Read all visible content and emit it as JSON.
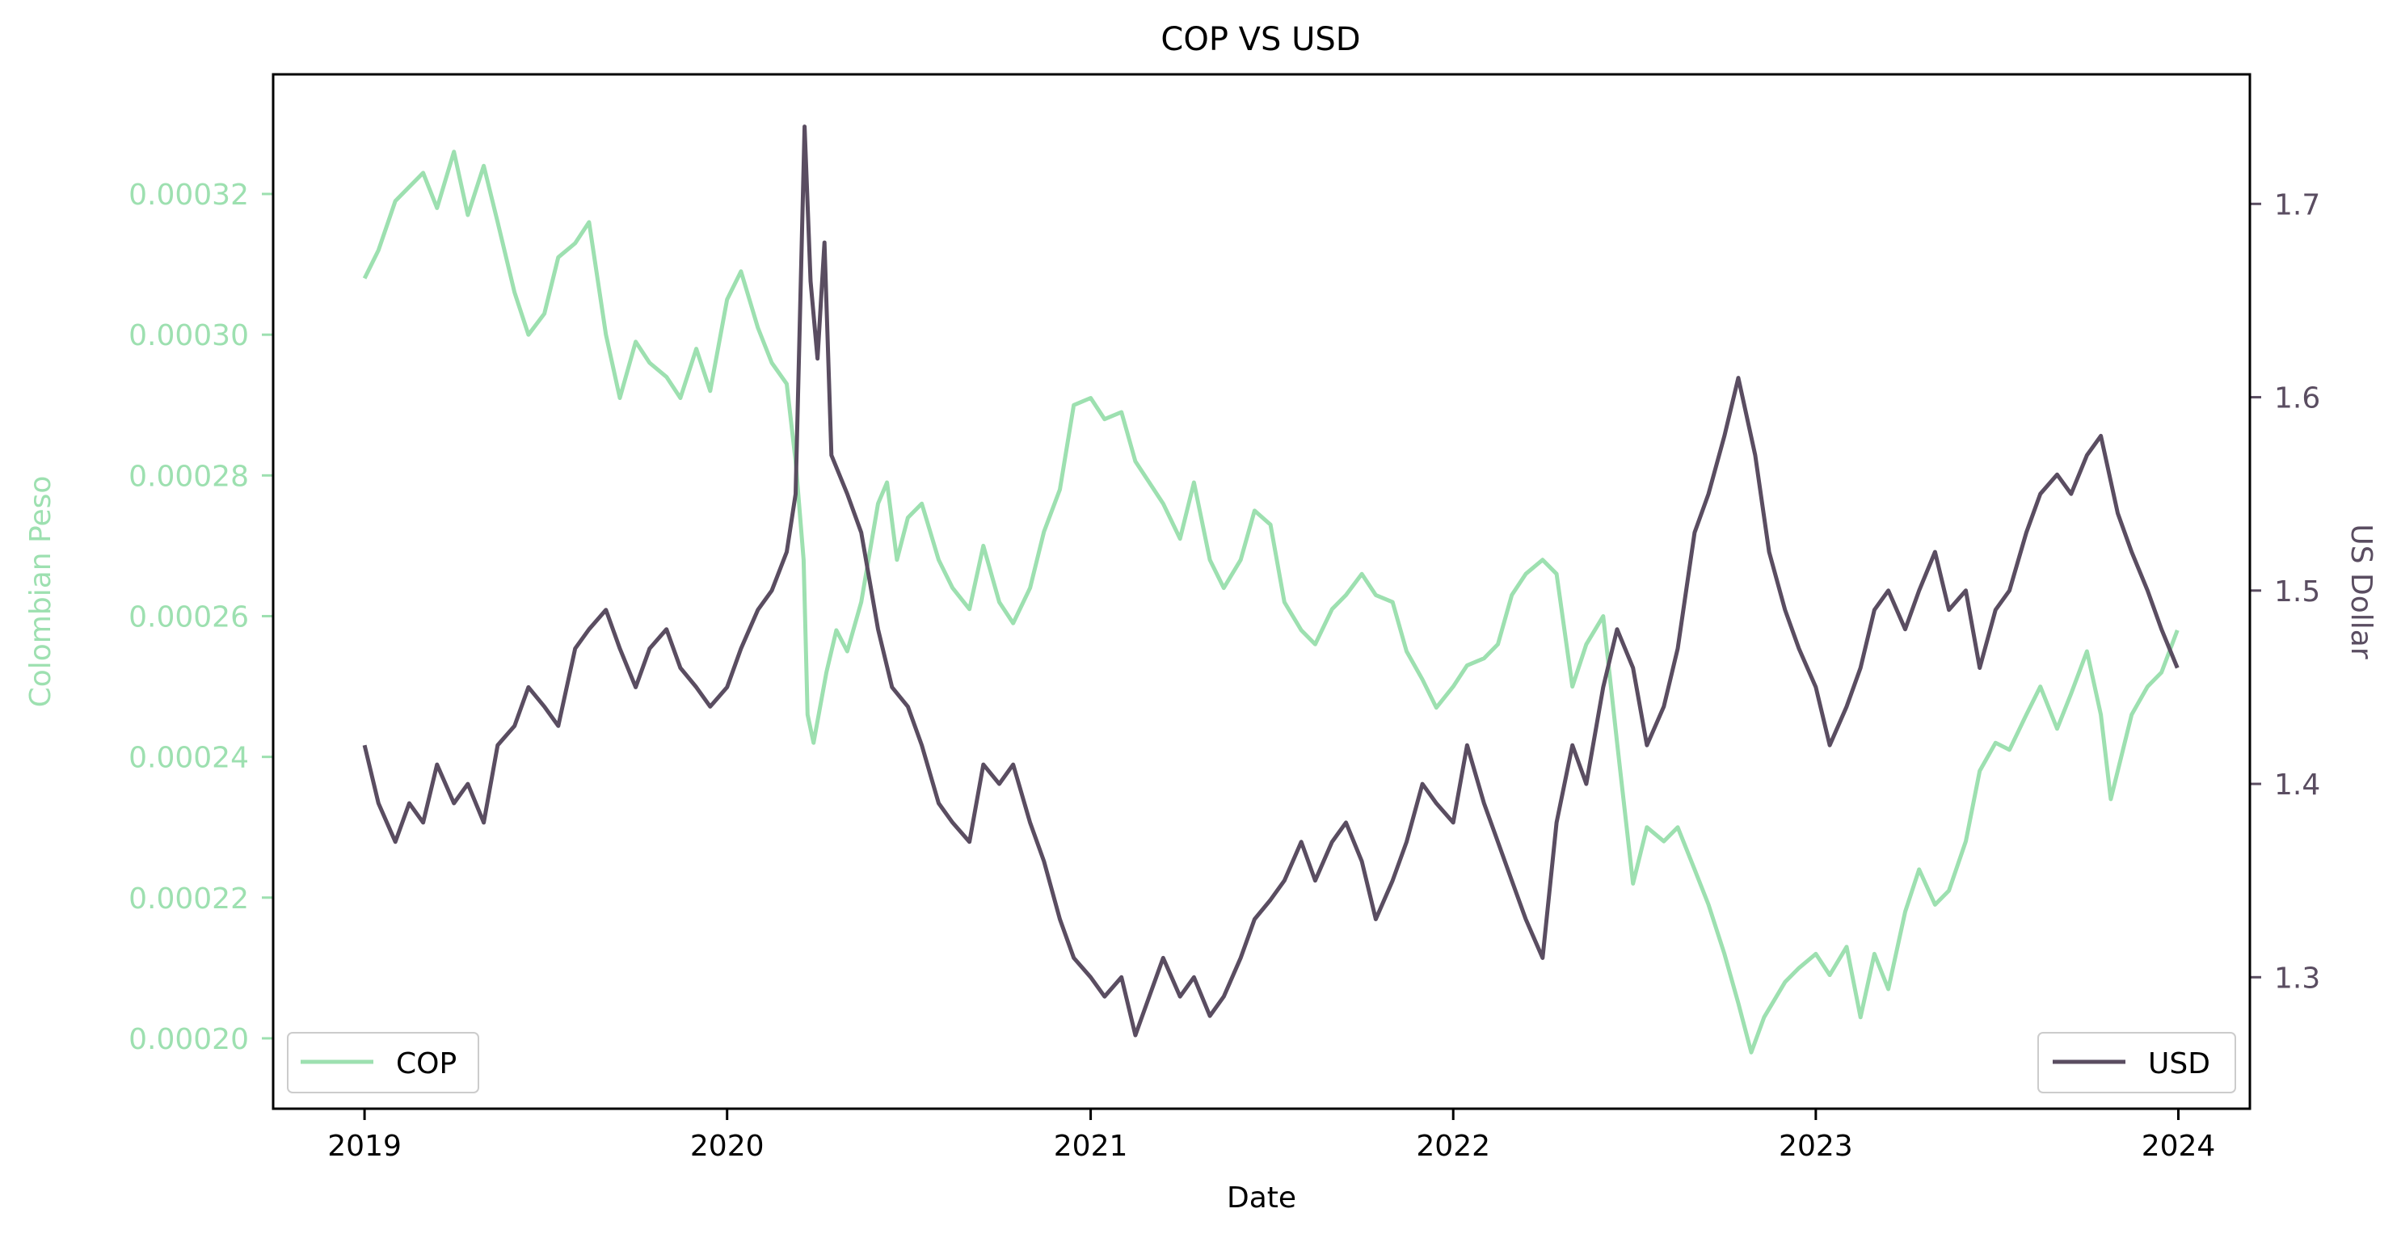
{
  "chart_data": {
    "type": "line",
    "title": "COP VS USD",
    "xlabel": "Date",
    "ylabel_left": "Colombian Peso",
    "ylabel_right": "US Dollar",
    "x_ticks": [
      "2019",
      "2020",
      "2021",
      "2022",
      "2023",
      "2024"
    ],
    "y_left_ticks": [
      "0.00020",
      "0.00022",
      "0.00024",
      "0.00026",
      "0.00028",
      "0.00030",
      "0.00032"
    ],
    "y_right_ticks": [
      "1.3",
      "1.4",
      "1.5",
      "1.6",
      "1.7"
    ],
    "xlim": [
      "2018-10-01",
      "2024-03-13"
    ],
    "ylim_left": [
      0.00019,
      0.000337
    ],
    "ylim_right": [
      1.232,
      1.767
    ],
    "grid": false,
    "legend_left": {
      "position": "lower-left",
      "label": "COP"
    },
    "legend_right": {
      "position": "lower-right",
      "label": "USD"
    },
    "colors": {
      "cop": "#9de0b0",
      "usd": "#5a4d61"
    },
    "series": [
      {
        "name": "COP",
        "axis": "left",
        "points": [
          [
            "2019-01-01",
            0.000308
          ],
          [
            "2019-01-15",
            0.000312
          ],
          [
            "2019-02-01",
            0.000319
          ],
          [
            "2019-02-15",
            0.000321
          ],
          [
            "2019-03-01",
            0.000323
          ],
          [
            "2019-03-15",
            0.000318
          ],
          [
            "2019-04-01",
            0.000326
          ],
          [
            "2019-04-15",
            0.000317
          ],
          [
            "2019-05-01",
            0.000324
          ],
          [
            "2019-05-15",
            0.000316
          ],
          [
            "2019-06-01",
            0.000306
          ],
          [
            "2019-06-15",
            0.0003
          ],
          [
            "2019-07-01",
            0.000303
          ],
          [
            "2019-07-15",
            0.000311
          ],
          [
            "2019-08-01",
            0.000313
          ],
          [
            "2019-08-15",
            0.000316
          ],
          [
            "2019-09-01",
            0.0003
          ],
          [
            "2019-09-15",
            0.000291
          ],
          [
            "2019-10-01",
            0.000299
          ],
          [
            "2019-10-15",
            0.000296
          ],
          [
            "2019-11-01",
            0.000294
          ],
          [
            "2019-11-15",
            0.000291
          ],
          [
            "2019-12-01",
            0.000298
          ],
          [
            "2019-12-15",
            0.000292
          ],
          [
            "2020-01-01",
            0.000305
          ],
          [
            "2020-01-15",
            0.000309
          ],
          [
            "2020-02-01",
            0.000301
          ],
          [
            "2020-02-15",
            0.000296
          ],
          [
            "2020-03-01",
            0.000293
          ],
          [
            "2020-03-10",
            0.000282
          ],
          [
            "2020-03-18",
            0.000268
          ],
          [
            "2020-03-22",
            0.000246
          ],
          [
            "2020-03-28",
            0.000242
          ],
          [
            "2020-04-10",
            0.000252
          ],
          [
            "2020-04-20",
            0.000258
          ],
          [
            "2020-05-01",
            0.000255
          ],
          [
            "2020-05-15",
            0.000262
          ],
          [
            "2020-06-01",
            0.000276
          ],
          [
            "2020-06-10",
            0.000279
          ],
          [
            "2020-06-20",
            0.000268
          ],
          [
            "2020-07-01",
            0.000274
          ],
          [
            "2020-07-15",
            0.000276
          ],
          [
            "2020-08-01",
            0.000268
          ],
          [
            "2020-08-15",
            0.000264
          ],
          [
            "2020-09-01",
            0.000261
          ],
          [
            "2020-09-15",
            0.00027
          ],
          [
            "2020-10-01",
            0.000262
          ],
          [
            "2020-10-15",
            0.000259
          ],
          [
            "2020-11-01",
            0.000264
          ],
          [
            "2020-11-15",
            0.000272
          ],
          [
            "2020-12-01",
            0.000278
          ],
          [
            "2020-12-15",
            0.00029
          ],
          [
            "2021-01-01",
            0.000291
          ],
          [
            "2021-01-15",
            0.000288
          ],
          [
            "2021-02-01",
            0.000289
          ],
          [
            "2021-02-15",
            0.000282
          ],
          [
            "2021-03-01",
            0.000279
          ],
          [
            "2021-03-15",
            0.000276
          ],
          [
            "2021-04-01",
            0.000271
          ],
          [
            "2021-04-15",
            0.000279
          ],
          [
            "2021-05-01",
            0.000268
          ],
          [
            "2021-05-15",
            0.000264
          ],
          [
            "2021-06-01",
            0.000268
          ],
          [
            "2021-06-15",
            0.000275
          ],
          [
            "2021-07-01",
            0.000273
          ],
          [
            "2021-07-15",
            0.000262
          ],
          [
            "2021-08-01",
            0.000258
          ],
          [
            "2021-08-15",
            0.000256
          ],
          [
            "2021-09-01",
            0.000261
          ],
          [
            "2021-09-15",
            0.000263
          ],
          [
            "2021-10-01",
            0.000266
          ],
          [
            "2021-10-15",
            0.000263
          ],
          [
            "2021-11-01",
            0.000262
          ],
          [
            "2021-11-15",
            0.000255
          ],
          [
            "2021-12-01",
            0.000251
          ],
          [
            "2021-12-15",
            0.000247
          ],
          [
            "2022-01-01",
            0.00025
          ],
          [
            "2022-01-15",
            0.000253
          ],
          [
            "2022-02-01",
            0.000254
          ],
          [
            "2022-02-15",
            0.000256
          ],
          [
            "2022-03-01",
            0.000263
          ],
          [
            "2022-03-15",
            0.000266
          ],
          [
            "2022-04-01",
            0.000268
          ],
          [
            "2022-04-15",
            0.000266
          ],
          [
            "2022-05-01",
            0.00025
          ],
          [
            "2022-05-15",
            0.000256
          ],
          [
            "2022-06-01",
            0.00026
          ],
          [
            "2022-06-15",
            0.000242
          ],
          [
            "2022-07-01",
            0.000222
          ],
          [
            "2022-07-15",
            0.00023
          ],
          [
            "2022-08-01",
            0.000228
          ],
          [
            "2022-08-15",
            0.00023
          ],
          [
            "2022-09-01",
            0.000224
          ],
          [
            "2022-09-15",
            0.000219
          ],
          [
            "2022-10-01",
            0.000212
          ],
          [
            "2022-10-15",
            0.000205
          ],
          [
            "2022-10-28",
            0.000198
          ],
          [
            "2022-11-10",
            0.000203
          ],
          [
            "2022-12-01",
            0.000208
          ],
          [
            "2022-12-15",
            0.00021
          ],
          [
            "2023-01-01",
            0.000212
          ],
          [
            "2023-01-15",
            0.000209
          ],
          [
            "2023-02-01",
            0.000213
          ],
          [
            "2023-02-15",
            0.000203
          ],
          [
            "2023-03-01",
            0.000212
          ],
          [
            "2023-03-15",
            0.000207
          ],
          [
            "2023-04-01",
            0.000218
          ],
          [
            "2023-04-15",
            0.000224
          ],
          [
            "2023-05-01",
            0.000219
          ],
          [
            "2023-05-15",
            0.000221
          ],
          [
            "2023-06-01",
            0.000228
          ],
          [
            "2023-06-15",
            0.000238
          ],
          [
            "2023-07-01",
            0.000242
          ],
          [
            "2023-07-15",
            0.000241
          ],
          [
            "2023-08-01",
            0.000246
          ],
          [
            "2023-08-15",
            0.00025
          ],
          [
            "2023-09-01",
            0.000244
          ],
          [
            "2023-09-15",
            0.000249
          ],
          [
            "2023-10-01",
            0.000255
          ],
          [
            "2023-10-15",
            0.000246
          ],
          [
            "2023-10-25",
            0.000234
          ],
          [
            "2023-11-01",
            0.000238
          ],
          [
            "2023-11-15",
            0.000246
          ],
          [
            "2023-12-01",
            0.00025
          ],
          [
            "2023-12-15",
            0.000252
          ],
          [
            "2023-12-31",
            0.000258
          ]
        ]
      },
      {
        "name": "USD",
        "axis": "right",
        "points": [
          [
            "2019-01-01",
            1.42
          ],
          [
            "2019-01-15",
            1.39
          ],
          [
            "2019-02-01",
            1.37
          ],
          [
            "2019-02-15",
            1.39
          ],
          [
            "2019-03-01",
            1.38
          ],
          [
            "2019-03-15",
            1.41
          ],
          [
            "2019-04-01",
            1.39
          ],
          [
            "2019-04-15",
            1.4
          ],
          [
            "2019-05-01",
            1.38
          ],
          [
            "2019-05-15",
            1.42
          ],
          [
            "2019-06-01",
            1.43
          ],
          [
            "2019-06-15",
            1.45
          ],
          [
            "2019-07-01",
            1.44
          ],
          [
            "2019-07-15",
            1.43
          ],
          [
            "2019-08-01",
            1.47
          ],
          [
            "2019-08-15",
            1.48
          ],
          [
            "2019-09-01",
            1.49
          ],
          [
            "2019-09-15",
            1.47
          ],
          [
            "2019-10-01",
            1.45
          ],
          [
            "2019-10-15",
            1.47
          ],
          [
            "2019-11-01",
            1.48
          ],
          [
            "2019-11-15",
            1.46
          ],
          [
            "2019-12-01",
            1.45
          ],
          [
            "2019-12-15",
            1.44
          ],
          [
            "2020-01-01",
            1.45
          ],
          [
            "2020-01-15",
            1.47
          ],
          [
            "2020-02-01",
            1.49
          ],
          [
            "2020-02-15",
            1.5
          ],
          [
            "2020-03-01",
            1.52
          ],
          [
            "2020-03-10",
            1.55
          ],
          [
            "2020-03-19",
            1.74
          ],
          [
            "2020-03-25",
            1.66
          ],
          [
            "2020-04-01",
            1.62
          ],
          [
            "2020-04-08",
            1.68
          ],
          [
            "2020-04-15",
            1.57
          ],
          [
            "2020-05-01",
            1.55
          ],
          [
            "2020-05-15",
            1.53
          ],
          [
            "2020-06-01",
            1.48
          ],
          [
            "2020-06-15",
            1.45
          ],
          [
            "2020-07-01",
            1.44
          ],
          [
            "2020-07-15",
            1.42
          ],
          [
            "2020-08-01",
            1.39
          ],
          [
            "2020-08-15",
            1.38
          ],
          [
            "2020-09-01",
            1.37
          ],
          [
            "2020-09-15",
            1.41
          ],
          [
            "2020-10-01",
            1.4
          ],
          [
            "2020-10-15",
            1.41
          ],
          [
            "2020-11-01",
            1.38
          ],
          [
            "2020-11-15",
            1.36
          ],
          [
            "2020-12-01",
            1.33
          ],
          [
            "2020-12-15",
            1.31
          ],
          [
            "2021-01-01",
            1.3
          ],
          [
            "2021-01-15",
            1.29
          ],
          [
            "2021-02-01",
            1.3
          ],
          [
            "2021-02-15",
            1.27
          ],
          [
            "2021-03-01",
            1.29
          ],
          [
            "2021-03-15",
            1.31
          ],
          [
            "2021-04-01",
            1.29
          ],
          [
            "2021-04-15",
            1.3
          ],
          [
            "2021-05-01",
            1.28
          ],
          [
            "2021-05-15",
            1.29
          ],
          [
            "2021-06-01",
            1.31
          ],
          [
            "2021-06-15",
            1.33
          ],
          [
            "2021-07-01",
            1.34
          ],
          [
            "2021-07-15",
            1.35
          ],
          [
            "2021-08-01",
            1.37
          ],
          [
            "2021-08-15",
            1.35
          ],
          [
            "2021-09-01",
            1.37
          ],
          [
            "2021-09-15",
            1.38
          ],
          [
            "2021-10-01",
            1.36
          ],
          [
            "2021-10-15",
            1.33
          ],
          [
            "2021-11-01",
            1.35
          ],
          [
            "2021-11-15",
            1.37
          ],
          [
            "2021-12-01",
            1.4
          ],
          [
            "2021-12-15",
            1.39
          ],
          [
            "2022-01-01",
            1.38
          ],
          [
            "2022-01-15",
            1.42
          ],
          [
            "2022-02-01",
            1.39
          ],
          [
            "2022-02-15",
            1.37
          ],
          [
            "2022-03-01",
            1.35
          ],
          [
            "2022-03-15",
            1.33
          ],
          [
            "2022-04-01",
            1.31
          ],
          [
            "2022-04-15",
            1.38
          ],
          [
            "2022-05-01",
            1.42
          ],
          [
            "2022-05-15",
            1.4
          ],
          [
            "2022-06-01",
            1.45
          ],
          [
            "2022-06-15",
            1.48
          ],
          [
            "2022-07-01",
            1.46
          ],
          [
            "2022-07-15",
            1.42
          ],
          [
            "2022-08-01",
            1.44
          ],
          [
            "2022-08-15",
            1.47
          ],
          [
            "2022-09-01",
            1.53
          ],
          [
            "2022-09-15",
            1.55
          ],
          [
            "2022-10-01",
            1.58
          ],
          [
            "2022-10-15",
            1.61
          ],
          [
            "2022-11-01",
            1.57
          ],
          [
            "2022-11-15",
            1.52
          ],
          [
            "2022-12-01",
            1.49
          ],
          [
            "2022-12-15",
            1.47
          ],
          [
            "2023-01-01",
            1.45
          ],
          [
            "2023-01-15",
            1.42
          ],
          [
            "2023-02-01",
            1.44
          ],
          [
            "2023-02-15",
            1.46
          ],
          [
            "2023-03-01",
            1.49
          ],
          [
            "2023-03-15",
            1.5
          ],
          [
            "2023-04-01",
            1.48
          ],
          [
            "2023-04-15",
            1.5
          ],
          [
            "2023-05-01",
            1.52
          ],
          [
            "2023-05-15",
            1.49
          ],
          [
            "2023-06-01",
            1.5
          ],
          [
            "2023-06-15",
            1.46
          ],
          [
            "2023-07-01",
            1.49
          ],
          [
            "2023-07-15",
            1.5
          ],
          [
            "2023-08-01",
            1.53
          ],
          [
            "2023-08-15",
            1.55
          ],
          [
            "2023-09-01",
            1.56
          ],
          [
            "2023-09-15",
            1.55
          ],
          [
            "2023-10-01",
            1.57
          ],
          [
            "2023-10-15",
            1.58
          ],
          [
            "2023-11-01",
            1.54
          ],
          [
            "2023-11-15",
            1.52
          ],
          [
            "2023-12-01",
            1.5
          ],
          [
            "2023-12-15",
            1.48
          ],
          [
            "2023-12-31",
            1.46
          ]
        ]
      }
    ]
  }
}
